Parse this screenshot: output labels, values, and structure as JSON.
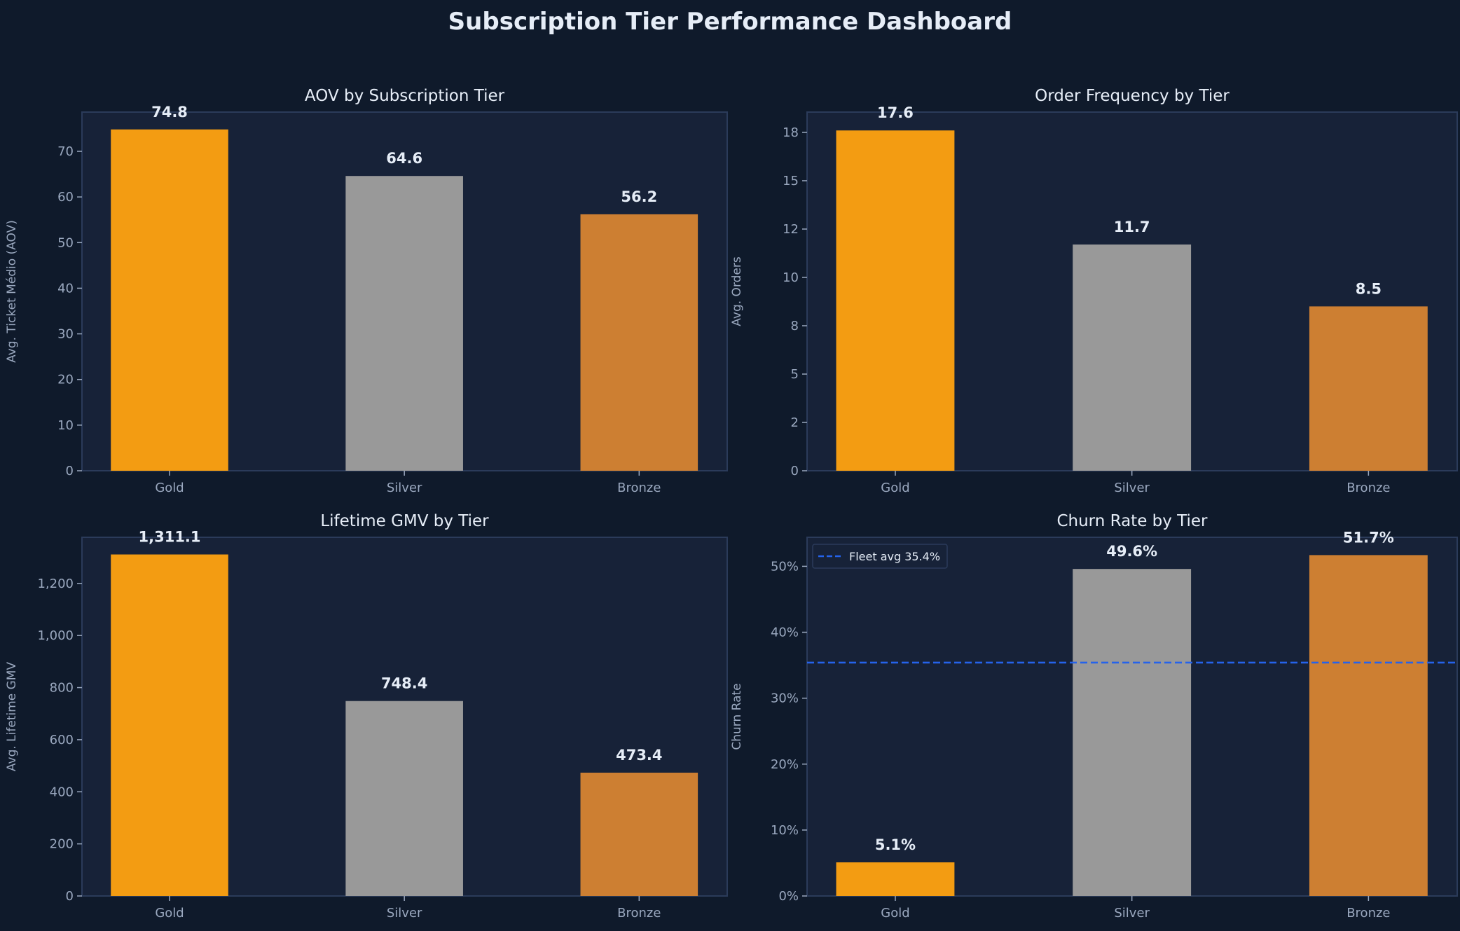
{
  "title": "Subscription Tier Performance Dashboard",
  "colors": {
    "background": "#0f1a2b",
    "axes": "#172238",
    "border": "#2b3b5a",
    "Gold": "#f39c12",
    "Silver": "#999999",
    "Bronze": "#cd7f32",
    "fleet_avg_line": "#2563eb",
    "text": "#e6edf7",
    "ticks": "#9aa8bf"
  },
  "chart_data": [
    {
      "type": "bar",
      "title": "AOV by Subscription Tier",
      "xlabel": "",
      "ylabel": "Avg. Ticket Médio (AOV)",
      "categories": [
        "Gold",
        "Silver",
        "Bronze"
      ],
      "values": [
        74.8,
        64.6,
        56.2
      ],
      "value_labels": [
        "74.8",
        "64.6",
        "56.2"
      ],
      "ylim": [
        0,
        78.6
      ],
      "yticks": [
        0,
        10,
        20,
        30,
        40,
        50,
        60,
        70
      ],
      "ytick_labels": [
        "0",
        "10",
        "20",
        "30",
        "40",
        "50",
        "60",
        "70"
      ],
      "grid": false
    },
    {
      "type": "bar",
      "title": "Order Frequency by Tier",
      "xlabel": "",
      "ylabel": "Avg. Orders",
      "categories": [
        "Gold",
        "Silver",
        "Bronze"
      ],
      "values": [
        17.6,
        11.7,
        8.5
      ],
      "value_labels": [
        "17.6",
        "11.7",
        "8.5"
      ],
      "ylim": [
        0,
        18.55
      ],
      "yticks": [
        0,
        2.5,
        5,
        7.5,
        10,
        12.5,
        15,
        17.5
      ],
      "ytick_labels": [
        "0",
        "2",
        "5",
        "8",
        "10",
        "12",
        "15",
        "18"
      ],
      "grid": false
    },
    {
      "type": "bar",
      "title": "Lifetime GMV by Tier",
      "xlabel": "",
      "ylabel": "Avg. Lifetime GMV",
      "categories": [
        "Gold",
        "Silver",
        "Bronze"
      ],
      "values": [
        1311.1,
        748.4,
        473.4
      ],
      "value_labels": [
        "1,311.1",
        "748.4",
        "473.4"
      ],
      "ylim": [
        0,
        1377
      ],
      "yticks": [
        0,
        200,
        400,
        600,
        800,
        1000,
        1200
      ],
      "ytick_labels": [
        "0",
        "200",
        "400",
        "600",
        "800",
        "1,000",
        "1,200"
      ],
      "grid": false
    },
    {
      "type": "bar",
      "title": "Churn Rate by Tier",
      "xlabel": "",
      "ylabel": "Churn Rate",
      "categories": [
        "Gold",
        "Silver",
        "Bronze"
      ],
      "values": [
        0.051,
        0.496,
        0.517
      ],
      "value_labels": [
        "5.1%",
        "49.6%",
        "51.7%"
      ],
      "ylim": [
        0,
        0.544
      ],
      "yticks": [
        0,
        0.1,
        0.2,
        0.3,
        0.4,
        0.5
      ],
      "ytick_labels": [
        "0%",
        "10%",
        "20%",
        "30%",
        "40%",
        "50%"
      ],
      "grid": false,
      "reference_line": {
        "value": 0.354,
        "style": "dashed",
        "label": "Fleet avg 35.4%"
      },
      "legend": "top-left"
    }
  ]
}
